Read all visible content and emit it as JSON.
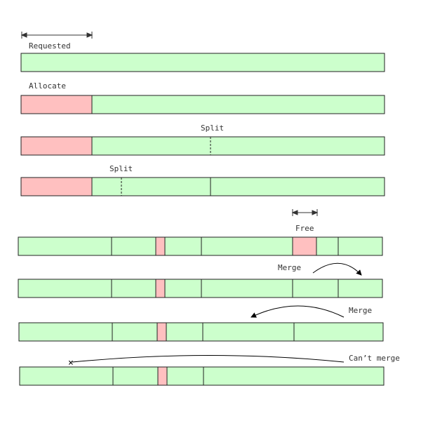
{
  "colors": {
    "free": "#ccffcc",
    "allocated": "#ffc0c0",
    "outline": "#222222"
  },
  "labels": {
    "requested": "Requested",
    "allocate": "Allocate",
    "split_1": "Split",
    "split_2": "Split",
    "free": "Free",
    "merge_1": "Merge",
    "merge_2": "Merge",
    "cant_merge": "Can’t merge"
  },
  "markers": {
    "cant_merge": "×"
  }
}
